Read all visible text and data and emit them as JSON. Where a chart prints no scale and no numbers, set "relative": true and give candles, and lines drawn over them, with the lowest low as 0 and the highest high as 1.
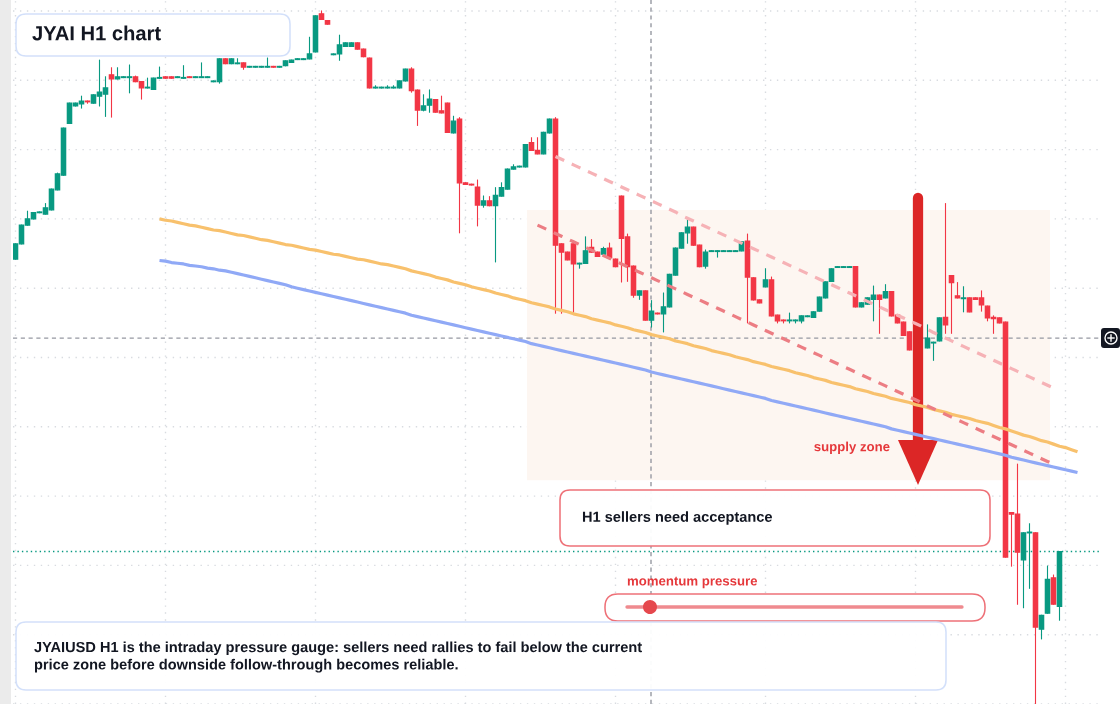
{
  "chart_data": {
    "type": "candlestick",
    "title": "JYAI H1 chart",
    "relative": true,
    "tick_labels": false,
    "grid": true,
    "categories": [
      null,
      null,
      null,
      null,
      null,
      null,
      null,
      null,
      null,
      null,
      null,
      null,
      null,
      null,
      null,
      null,
      null,
      null,
      null,
      null,
      null,
      null,
      null,
      null,
      null,
      null,
      null,
      null,
      null,
      null,
      null,
      null,
      null,
      null,
      null,
      null,
      null,
      null,
      null,
      null,
      null,
      null,
      null,
      null,
      null,
      null,
      null,
      null,
      null,
      null,
      null,
      null,
      null,
      null,
      null,
      null,
      null,
      null,
      null,
      null,
      null,
      null,
      null,
      null,
      null,
      null,
      null,
      null,
      null,
      null,
      null,
      null,
      null,
      null,
      null,
      null,
      null,
      null,
      null,
      null,
      null,
      null,
      null,
      null,
      null,
      null,
      null,
      null,
      null,
      null,
      null,
      null,
      null,
      null,
      null,
      null,
      null,
      null,
      null,
      null,
      null,
      null,
      null,
      null,
      null,
      null,
      null,
      null,
      null,
      null,
      null,
      null,
      null,
      null,
      null,
      null,
      null,
      null,
      null,
      null,
      null,
      null,
      null,
      null,
      null,
      null,
      null,
      null,
      null,
      null,
      null,
      null,
      null,
      null,
      null,
      null,
      null,
      null,
      null,
      null,
      null,
      null,
      null,
      null,
      null,
      null,
      null,
      null,
      null,
      null,
      null,
      null,
      null,
      null,
      null,
      null,
      null,
      null,
      null,
      null,
      null,
      null,
      null,
      null,
      null,
      null,
      null,
      null,
      null,
      null,
      null,
      null,
      null,
      null,
      null,
      null,
      null,
      null
    ],
    "ohlc": [
      [
        0.642,
        0.664,
        0.642,
        0.664
      ],
      [
        0.664,
        0.691,
        0.664,
        0.691
      ],
      [
        0.691,
        0.711,
        0.691,
        0.7
      ],
      [
        0.7,
        0.709,
        0.7,
        0.709
      ],
      [
        0.709,
        0.71,
        0.709,
        0.71
      ],
      [
        0.707,
        0.722,
        0.707,
        0.716
      ],
      [
        0.713,
        0.743,
        0.713,
        0.743
      ],
      [
        0.742,
        0.766,
        0.742,
        0.765
      ],
      [
        0.763,
        0.831,
        0.763,
        0.831
      ],
      [
        0.838,
        0.867,
        0.838,
        0.867
      ],
      [
        0.863,
        0.867,
        0.863,
        0.867
      ],
      [
        0.866,
        0.877,
        0.86,
        0.87
      ],
      [
        0.87,
        0.87,
        0.867,
        0.869
      ],
      [
        0.867,
        0.879,
        0.867,
        0.879
      ],
      [
        0.877,
        0.929,
        0.863,
        0.883
      ],
      [
        0.88,
        0.905,
        0.848,
        0.889
      ],
      [
        0.908,
        0.918,
        0.847,
        0.902
      ],
      [
        0.902,
        0.918,
        0.902,
        0.905
      ],
      [
        0.904,
        0.905,
        0.904,
        0.905
      ],
      [
        0.904,
        0.922,
        0.882,
        0.905
      ],
      [
        0.905,
        0.906,
        0.898,
        0.898
      ],
      [
        0.898,
        0.898,
        0.873,
        0.889
      ],
      [
        0.889,
        0.903,
        0.889,
        0.89
      ],
      [
        0.887,
        0.903,
        0.887,
        0.903
      ],
      [
        0.903,
        0.919,
        0.903,
        0.904
      ],
      [
        0.905,
        0.905,
        0.903,
        0.903
      ],
      [
        0.905,
        0.905,
        0.903,
        0.903
      ],
      [
        0.904,
        0.905,
        0.904,
        0.905
      ],
      [
        0.903,
        0.921,
        0.903,
        0.904
      ],
      [
        0.905,
        0.905,
        0.904,
        0.904
      ],
      [
        0.904,
        0.905,
        0.904,
        0.905
      ],
      [
        0.904,
        0.925,
        0.904,
        0.905
      ],
      [
        0.904,
        0.905,
        0.904,
        0.905
      ],
      [
        0.898,
        0.899,
        0.898,
        0.899
      ],
      [
        0.898,
        0.931,
        0.896,
        0.931
      ],
      [
        0.931,
        0.931,
        0.924,
        0.924
      ],
      [
        0.924,
        0.931,
        0.924,
        0.931
      ],
      [
        0.924,
        0.931,
        0.924,
        0.925
      ],
      [
        0.925,
        0.925,
        0.916,
        0.919
      ],
      [
        0.919,
        0.92,
        0.919,
        0.92
      ],
      [
        0.919,
        0.92,
        0.919,
        0.92
      ],
      [
        0.919,
        0.92,
        0.919,
        0.92
      ],
      [
        0.919,
        0.932,
        0.919,
        0.92
      ],
      [
        0.92,
        0.92,
        0.919,
        0.919
      ],
      [
        0.919,
        0.92,
        0.919,
        0.92
      ],
      [
        0.921,
        0.928,
        0.921,
        0.928
      ],
      [
        0.926,
        0.929,
        0.926,
        0.929
      ],
      [
        0.93,
        0.931,
        0.93,
        0.931
      ],
      [
        0.93,
        0.931,
        0.93,
        0.931
      ],
      [
        0.931,
        0.962,
        0.931,
        0.938
      ],
      [
        0.941,
        0.993,
        0.941,
        0.993
      ],
      [
        0.996,
        1.0,
        0.988,
        0.988
      ],
      [
        0.986,
        0.986,
        0.981,
        0.981
      ],
      [
        0.937,
        0.938,
        0.937,
        0.938
      ],
      [
        0.938,
        0.965,
        0.929,
        0.951
      ],
      [
        0.949,
        0.954,
        0.949,
        0.954
      ],
      [
        0.949,
        0.954,
        0.949,
        0.954
      ],
      [
        0.954,
        0.954,
        0.945,
        0.945
      ],
      [
        0.945,
        0.945,
        0.934,
        0.934
      ],
      [
        0.932,
        0.932,
        0.889,
        0.889
      ],
      [
        0.889,
        0.892,
        0.889,
        0.89
      ],
      [
        0.889,
        0.89,
        0.889,
        0.89
      ],
      [
        0.889,
        0.892,
        0.889,
        0.89
      ],
      [
        0.889,
        0.892,
        0.889,
        0.89
      ],
      [
        0.889,
        0.899,
        0.889,
        0.899
      ],
      [
        0.899,
        0.916,
        0.899,
        0.916
      ],
      [
        0.916,
        0.918,
        0.883,
        0.885
      ],
      [
        0.886,
        0.886,
        0.835,
        0.857
      ],
      [
        0.857,
        0.879,
        0.856,
        0.863
      ],
      [
        0.864,
        0.886,
        0.854,
        0.873
      ],
      [
        0.872,
        0.872,
        0.854,
        0.854
      ],
      [
        0.856,
        0.877,
        0.853,
        0.853
      ],
      [
        0.867,
        0.867,
        0.825,
        0.825
      ],
      [
        0.824,
        0.848,
        0.824,
        0.841
      ],
      [
        0.844,
        0.846,
        0.68,
        0.752
      ],
      [
        0.752,
        0.752,
        0.75,
        0.75
      ],
      [
        0.75,
        0.75,
        0.749,
        0.749
      ],
      [
        0.746,
        0.756,
        0.69,
        0.72
      ],
      [
        0.72,
        0.733,
        0.717,
        0.726
      ],
      [
        0.726,
        0.732,
        0.719,
        0.719
      ],
      [
        0.719,
        0.745,
        0.638,
        0.734
      ],
      [
        0.733,
        0.752,
        0.733,
        0.745
      ],
      [
        0.743,
        0.772,
        0.743,
        0.772
      ],
      [
        0.772,
        0.778,
        0.772,
        0.775
      ],
      [
        0.775,
        0.776,
        0.775,
        0.776
      ],
      [
        0.775,
        0.807,
        0.775,
        0.807
      ],
      [
        0.81,
        0.817,
        0.799,
        0.799
      ],
      [
        0.799,
        0.817,
        0.794,
        0.794
      ],
      [
        0.794,
        0.825,
        0.794,
        0.825
      ],
      [
        0.824,
        0.844,
        0.824,
        0.844
      ],
      [
        0.844,
        0.846,
        0.564,
        0.662
      ],
      [
        0.664,
        0.664,
        0.564,
        0.652
      ],
      [
        0.652,
        0.652,
        0.641,
        0.641
      ],
      [
        0.664,
        0.665,
        0.564,
        0.635
      ],
      [
        0.635,
        0.636,
        0.629,
        0.636
      ],
      [
        0.636,
        0.674,
        0.636,
        0.654
      ],
      [
        0.659,
        0.67,
        0.652,
        0.652
      ],
      [
        0.652,
        0.652,
        0.646,
        0.646
      ],
      [
        0.649,
        0.659,
        0.649,
        0.657
      ],
      [
        0.658,
        0.665,
        0.644,
        0.644
      ],
      [
        0.642,
        0.642,
        0.631,
        0.631
      ],
      [
        0.733,
        0.733,
        0.609,
        0.672
      ],
      [
        0.674,
        0.678,
        0.61,
        0.631
      ],
      [
        0.632,
        0.632,
        0.587,
        0.59
      ],
      [
        0.59,
        0.596,
        0.584,
        0.596
      ],
      [
        0.596,
        0.596,
        0.554,
        0.554
      ],
      [
        0.554,
        0.582,
        0.544,
        0.567
      ],
      [
        0.564,
        0.564,
        0.563,
        0.563
      ],
      [
        0.563,
        0.593,
        0.537,
        0.573
      ],
      [
        0.573,
        0.62,
        0.573,
        0.62
      ],
      [
        0.619,
        0.658,
        0.619,
        0.658
      ],
      [
        0.658,
        0.68,
        0.658,
        0.68
      ],
      [
        0.68,
        0.7,
        0.665,
        0.688
      ],
      [
        0.688,
        0.688,
        0.662,
        0.662
      ],
      [
        0.662,
        0.662,
        0.631,
        0.631
      ],
      [
        0.632,
        0.655,
        0.629,
        0.652
      ],
      [
        0.653,
        0.654,
        0.653,
        0.654
      ],
      [
        0.653,
        0.654,
        0.645,
        0.654
      ],
      [
        0.653,
        0.654,
        0.653,
        0.654
      ],
      [
        0.653,
        0.654,
        0.653,
        0.654
      ],
      [
        0.653,
        0.654,
        0.653,
        0.654
      ],
      [
        0.654,
        0.667,
        0.654,
        0.667
      ],
      [
        0.668,
        0.678,
        0.55,
        0.616
      ],
      [
        0.615,
        0.615,
        0.583,
        0.583
      ],
      [
        0.583,
        0.583,
        0.579,
        0.579
      ],
      [
        0.602,
        0.628,
        0.602,
        0.612
      ],
      [
        0.612,
        0.616,
        0.56,
        0.56
      ],
      [
        0.561,
        0.561,
        0.55,
        0.553
      ],
      [
        0.554,
        0.554,
        0.55,
        0.553
      ],
      [
        0.553,
        0.564,
        0.55,
        0.554
      ],
      [
        0.553,
        0.554,
        0.55,
        0.554
      ],
      [
        0.553,
        0.56,
        0.55,
        0.56
      ],
      [
        0.559,
        0.56,
        0.559,
        0.56
      ],
      [
        0.558,
        0.566,
        0.558,
        0.566
      ],
      [
        0.567,
        0.587,
        0.567,
        0.587
      ],
      [
        0.586,
        0.609,
        0.586,
        0.609
      ],
      [
        0.61,
        0.628,
        0.61,
        0.628
      ],
      [
        0.63,
        0.631,
        0.63,
        0.631
      ],
      [
        0.63,
        0.631,
        0.63,
        0.631
      ],
      [
        0.63,
        0.631,
        0.63,
        0.631
      ],
      [
        0.631,
        0.631,
        0.573,
        0.573
      ],
      [
        0.573,
        0.579,
        0.573,
        0.579
      ],
      [
        0.577,
        0.586,
        0.577,
        0.586
      ],
      [
        0.584,
        0.603,
        0.553,
        0.59
      ],
      [
        0.59,
        0.59,
        0.535,
        0.584
      ],
      [
        0.586,
        0.605,
        0.586,
        0.595
      ],
      [
        0.595,
        0.595,
        0.56,
        0.56
      ],
      [
        0.561,
        0.561,
        0.55,
        0.55
      ],
      [
        0.551,
        0.551,
        0.532,
        0.532
      ],
      [
        0.537,
        0.537,
        0.511,
        0.511
      ],
      null,
      null,
      [
        0.514,
        0.547,
        0.514,
        0.528
      ],
      [
        0.521,
        0.522,
        0.496,
        0.522
      ],
      [
        0.524,
        0.557,
        0.524,
        0.557
      ],
      [
        0.558,
        0.722,
        0.535,
        0.547
      ],
      [
        0.618,
        0.618,
        0.535,
        0.608
      ],
      [
        0.589,
        0.608,
        0.586,
        0.586
      ],
      [
        0.585,
        0.602,
        0.566,
        0.586
      ],
      [
        0.586,
        0.586,
        0.566,
        0.566
      ],
      [
        0.586,
        0.586,
        0.584,
        0.584
      ],
      [
        0.586,
        0.596,
        0.567,
        0.576
      ],
      [
        0.574,
        0.574,
        0.553,
        0.557
      ],
      [
        0.558,
        0.56,
        0.535,
        0.556
      ],
      [
        0.557,
        0.557,
        0.55,
        0.55
      ],
      [
        0.551,
        0.551,
        0.212,
        0.212
      ],
      [
        0.276,
        0.276,
        0.199,
        0.274
      ],
      [
        0.274,
        0.346,
        0.144,
        0.219
      ],
      [
        0.208,
        0.247,
        0.139,
        0.247
      ],
      [
        0.247,
        0.26,
        0.167,
        0.248
      ],
      [
        0.247,
        0.247,
        0.0,
        0.111
      ],
      [
        0.108,
        0.128,
        0.094,
        0.128
      ],
      [
        0.131,
        0.199,
        0.131,
        0.18
      ],
      [
        0.182,
        0.186,
        0.144,
        0.144
      ],
      [
        0.141,
        0.22,
        0.121,
        0.22
      ],
      null,
      null,
      null
    ],
    "colors": [
      "#089981",
      "#089981",
      "#089981",
      "#089981",
      "#089981",
      "#089981",
      "#089981",
      "#089981",
      "#089981",
      "#089981",
      "#089981",
      "#089981",
      "#f23645",
      "#089981",
      "#089981",
      "#089981",
      "#f23645",
      "#089981",
      "#089981",
      "#089981",
      "#f23645",
      "#f23645",
      "#089981",
      "#089981",
      "#089981",
      "#f23645",
      "#f23645",
      "#089981",
      "#089981",
      "#f23645",
      "#089981",
      "#089981",
      "#089981",
      "#089981",
      "#089981",
      "#f23645",
      "#089981",
      "#089981",
      "#f23645",
      "#089981",
      "#089981",
      "#089981",
      "#089981",
      "#f23645",
      "#089981",
      "#089981",
      "#089981",
      "#089981",
      "#089981",
      "#089981",
      "#089981",
      "#f23645",
      "#f23645",
      "#089981",
      "#089981",
      "#089981",
      "#089981",
      "#f23645",
      "#f23645",
      "#f23645",
      "#089981",
      "#089981",
      "#089981",
      "#089981",
      "#089981",
      "#089981",
      "#f23645",
      "#f23645",
      "#089981",
      "#089981",
      "#f23645",
      "#f23645",
      "#f23645",
      "#089981",
      "#f23645",
      "#f23645",
      "#f23645",
      "#f23645",
      "#089981",
      "#f23645",
      "#089981",
      "#089981",
      "#089981",
      "#089981",
      "#089981",
      "#089981",
      "#f23645",
      "#f23645",
      "#089981",
      "#089981",
      "#f23645",
      "#f23645",
      "#f23645",
      "#f23645",
      "#089981",
      "#089981",
      "#f23645",
      "#f23645",
      "#089981",
      "#f23645",
      "#f23645",
      "#f23645",
      "#f23645",
      "#f23645",
      "#089981",
      "#f23645",
      "#089981",
      "#f23645",
      "#089981",
      "#089981",
      "#089981",
      "#089981",
      "#089981",
      "#f23645",
      "#f23645",
      "#089981",
      "#089981",
      "#089981",
      "#089981",
      "#089981",
      "#089981",
      "#089981",
      "#f23645",
      "#f23645",
      "#f23645",
      "#089981",
      "#f23645",
      "#f23645",
      "#f23645",
      "#089981",
      "#089981",
      "#089981",
      "#089981",
      "#089981",
      "#089981",
      "#089981",
      "#089981",
      "#089981",
      "#089981",
      "#089981",
      "#f23645",
      "#089981",
      "#089981",
      "#089981",
      "#f23645",
      "#089981",
      "#f23645",
      "#f23645",
      "#f23645",
      "#f23645",
      null,
      null,
      "#089981",
      "#089981",
      "#089981",
      "#f23645",
      "#f23645",
      "#f23645",
      "#089981",
      "#f23645",
      "#f23645",
      "#f23645",
      "#f23645",
      "#f23645",
      "#f23645",
      "#f23645",
      "#f23645",
      "#f23645",
      "#089981",
      "#089981",
      "#f23645",
      "#089981",
      "#089981",
      "#f23645",
      "#089981",
      null,
      null,
      null
    ],
    "series": [
      {
        "type": "line",
        "color": "#f8c16d",
        "values": [
          null,
          null,
          null,
          null,
          null,
          null,
          null,
          null,
          null,
          null,
          null,
          null,
          null,
          null,
          null,
          null,
          null,
          null,
          null,
          null,
          null,
          null,
          null,
          null,
          0.7,
          0.698,
          0.697,
          0.695,
          0.693,
          0.691,
          0.69,
          0.688,
          0.686,
          0.684,
          0.683,
          0.681,
          0.679,
          0.677,
          0.676,
          0.674,
          0.672,
          0.67,
          0.669,
          0.667,
          0.665,
          0.663,
          0.662,
          0.66,
          0.658,
          0.656,
          0.655,
          0.653,
          0.651,
          0.649,
          0.648,
          0.646,
          0.644,
          0.642,
          0.641,
          0.639,
          0.637,
          0.635,
          0.634,
          0.632,
          0.63,
          0.628,
          0.625,
          0.623,
          0.621,
          0.619,
          0.616,
          0.614,
          0.612,
          0.609,
          0.607,
          0.605,
          0.602,
          0.6,
          0.598,
          0.596,
          0.593,
          0.591,
          0.589,
          0.586,
          0.584,
          0.582,
          0.579,
          0.577,
          0.575,
          0.573,
          0.57,
          0.568,
          0.566,
          0.563,
          0.561,
          0.559,
          0.556,
          0.554,
          0.552,
          0.55,
          0.547,
          0.545,
          0.543,
          0.54,
          0.538,
          0.536,
          0.533,
          0.531,
          0.529,
          0.527,
          0.524,
          0.522,
          0.52,
          0.517,
          0.515,
          0.513,
          0.51,
          0.508,
          0.506,
          0.504,
          0.501,
          0.499,
          0.497,
          0.494,
          0.492,
          0.49,
          0.487,
          0.485,
          0.483,
          0.481,
          0.478,
          0.476,
          0.474,
          0.471,
          0.469,
          0.467,
          0.464,
          0.462,
          0.46,
          0.458,
          0.455,
          0.453,
          0.451,
          0.448,
          0.446,
          0.444,
          0.441,
          0.439,
          0.437,
          0.435,
          0.432,
          0.43,
          0.428,
          0.425,
          0.423,
          0.421,
          0.418,
          0.416,
          0.414,
          0.412,
          0.409,
          0.407,
          0.405,
          0.402,
          0.399,
          0.397,
          0.394,
          0.391,
          0.388,
          0.386,
          0.383,
          0.38,
          0.378,
          0.375,
          0.372,
          0.37,
          0.367,
          0.364
        ]
      },
      {
        "type": "line",
        "color": "#90a9f6",
        "values": [
          null,
          null,
          null,
          null,
          null,
          null,
          null,
          null,
          null,
          null,
          null,
          null,
          null,
          null,
          null,
          null,
          null,
          null,
          null,
          null,
          null,
          null,
          null,
          null,
          0.64,
          0.639,
          0.637,
          0.636,
          0.635,
          0.633,
          0.632,
          0.631,
          0.629,
          0.628,
          0.626,
          0.625,
          0.623,
          0.621,
          0.619,
          0.617,
          0.615,
          0.613,
          0.611,
          0.609,
          0.607,
          0.605,
          0.602,
          0.6,
          0.598,
          0.596,
          0.594,
          0.592,
          0.59,
          0.588,
          0.586,
          0.584,
          0.582,
          0.58,
          0.578,
          0.576,
          0.574,
          0.572,
          0.57,
          0.568,
          0.566,
          0.564,
          0.561,
          0.559,
          0.557,
          0.555,
          0.553,
          0.551,
          0.549,
          0.547,
          0.545,
          0.543,
          0.541,
          0.539,
          0.537,
          0.535,
          0.533,
          0.531,
          0.529,
          0.527,
          0.525,
          0.523,
          0.52,
          0.518,
          0.516,
          0.514,
          0.512,
          0.51,
          0.508,
          0.506,
          0.504,
          0.502,
          0.5,
          0.498,
          0.496,
          0.494,
          0.492,
          0.49,
          0.488,
          0.486,
          0.484,
          0.482,
          0.479,
          0.477,
          0.475,
          0.473,
          0.471,
          0.469,
          0.467,
          0.465,
          0.463,
          0.461,
          0.459,
          0.457,
          0.455,
          0.453,
          0.451,
          0.449,
          0.447,
          0.445,
          0.443,
          0.441,
          0.438,
          0.436,
          0.434,
          0.432,
          0.43,
          0.428,
          0.426,
          0.424,
          0.422,
          0.42,
          0.418,
          0.416,
          0.414,
          0.412,
          0.41,
          0.408,
          0.406,
          0.404,
          0.402,
          0.4,
          0.397,
          0.395,
          0.393,
          0.391,
          0.389,
          0.387,
          0.385,
          0.383,
          0.381,
          0.379,
          0.377,
          0.375,
          0.373,
          0.371,
          0.369,
          0.367,
          0.365,
          0.363,
          0.361,
          0.359,
          0.356,
          0.354,
          0.352,
          0.35,
          0.348,
          0.346,
          0.344,
          0.342,
          0.34,
          0.338,
          0.336,
          0.334
        ]
      },
      {
        "type": "line",
        "color": "#f6b2b6",
        "line_style": "dashed",
        "values": [
          null,
          null,
          null,
          null,
          null,
          null,
          null,
          null,
          null,
          null,
          null,
          null,
          null,
          null,
          null,
          null,
          null,
          null,
          null,
          null,
          null,
          null,
          null,
          null,
          null,
          null,
          null,
          null,
          null,
          null,
          null,
          null,
          null,
          null,
          null,
          null,
          null,
          null,
          null,
          null,
          null,
          null,
          null,
          null,
          null,
          null,
          null,
          null,
          null,
          null,
          null,
          null,
          null,
          null,
          null,
          null,
          null,
          null,
          null,
          null,
          null,
          null,
          null,
          null,
          null,
          null,
          null,
          null,
          null,
          null,
          null,
          null,
          null,
          null,
          null,
          null,
          null,
          null,
          null,
          null,
          null,
          null,
          null,
          null,
          null,
          null,
          null,
          null,
          null,
          null,
          0.79,
          0.786,
          0.782,
          0.778,
          0.774,
          0.77,
          0.766,
          0.762,
          0.758,
          0.754,
          0.75,
          0.746,
          0.742,
          0.738,
          0.734,
          0.73,
          0.726,
          0.722,
          0.718,
          0.714,
          0.71,
          0.705,
          0.701,
          0.697,
          0.693,
          0.689,
          0.685,
          0.681,
          0.677,
          0.673,
          0.669,
          0.665,
          0.661,
          0.657,
          0.653,
          0.649,
          0.645,
          0.641,
          0.637,
          0.633,
          0.629,
          0.625,
          0.621,
          0.617,
          0.613,
          0.609,
          0.605,
          0.601,
          0.597,
          0.593,
          0.589,
          0.585,
          0.581,
          0.577,
          0.573,
          0.569,
          0.565,
          0.561,
          0.557,
          0.553,
          0.549,
          0.545,
          0.541,
          0.536,
          0.532,
          0.528,
          0.524,
          0.52,
          0.516,
          0.512,
          0.508,
          0.504,
          0.5,
          0.496,
          0.492,
          0.488,
          0.484,
          0.48,
          0.476,
          0.472,
          0.468,
          0.464,
          0.46,
          0.456,
          null,
          null,
          null,
          null
        ]
      },
      {
        "type": "line",
        "color": "#ec7d83",
        "line_style": "dashed",
        "values": [
          null,
          null,
          null,
          null,
          null,
          null,
          null,
          null,
          null,
          null,
          null,
          null,
          null,
          null,
          null,
          null,
          null,
          null,
          null,
          null,
          null,
          null,
          null,
          null,
          null,
          null,
          null,
          null,
          null,
          null,
          null,
          null,
          null,
          null,
          null,
          null,
          null,
          null,
          null,
          null,
          null,
          null,
          null,
          null,
          null,
          null,
          null,
          null,
          null,
          null,
          null,
          null,
          null,
          null,
          null,
          null,
          null,
          null,
          null,
          null,
          null,
          null,
          null,
          null,
          null,
          null,
          null,
          null,
          null,
          null,
          null,
          null,
          null,
          null,
          null,
          null,
          null,
          null,
          null,
          null,
          null,
          null,
          null,
          null,
          null,
          null,
          null,
          0.691,
          0.687,
          0.683,
          0.679,
          0.675,
          0.671,
          0.667,
          0.663,
          0.659,
          0.655,
          0.651,
          0.647,
          0.643,
          0.639,
          0.635,
          0.631,
          0.627,
          0.623,
          0.619,
          0.615,
          0.611,
          0.607,
          0.603,
          0.599,
          0.595,
          0.591,
          0.587,
          0.583,
          0.579,
          0.575,
          0.571,
          0.567,
          0.563,
          0.559,
          0.555,
          0.551,
          0.547,
          0.543,
          0.539,
          0.535,
          0.531,
          0.527,
          0.523,
          0.519,
          0.515,
          0.511,
          0.507,
          0.503,
          0.499,
          0.495,
          0.491,
          0.487,
          0.483,
          0.479,
          0.475,
          0.471,
          0.467,
          0.463,
          0.459,
          0.455,
          0.451,
          0.447,
          0.443,
          0.439,
          0.435,
          0.43,
          0.426,
          0.422,
          0.418,
          0.414,
          0.41,
          0.406,
          0.402,
          0.398,
          0.394,
          0.39,
          0.386,
          0.382,
          0.378,
          0.374,
          0.37,
          0.366,
          0.362,
          0.358,
          0.354,
          0.35,
          0.346,
          null,
          null,
          null,
          null
        ]
      }
    ],
    "ref_lines": [
      {
        "axis": "y",
        "value": 0.528,
        "color": "#9598a1",
        "line_style": "dashed"
      },
      {
        "axis": "y",
        "value": 0.22,
        "color": "#089981",
        "line_style": "dotted"
      }
    ],
    "bands": [
      {
        "axis": "y",
        "from": 0.323,
        "to": 0.713,
        "label": "supply zone",
        "color": "#fdf6f1"
      }
    ],
    "annotations": [
      "H1 sellers need acceptance",
      "momentum pressure",
      "JYAIUSD H1 is the intraday pressure gauge: sellers need rallies to fail below the current\nprice zone before downside follow-through becomes reliable."
    ]
  }
}
